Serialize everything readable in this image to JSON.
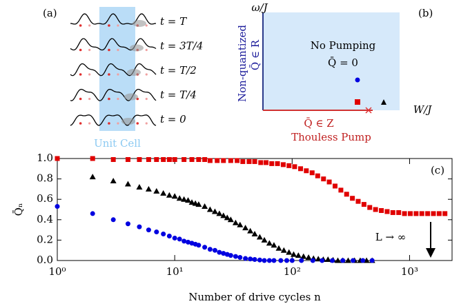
{
  "panel_a": {
    "label": "(a)",
    "rows": [
      "t = T",
      "t = 3T/4",
      "t = T/2",
      "t = T/4",
      "t = 0"
    ],
    "unit_cell": "Unit Cell"
  },
  "panel_b": {
    "label": "(b)",
    "y_axis": "ω/J",
    "x_axis": "W/J",
    "region": "No Pumping",
    "region_value": "Q̄ = 0",
    "left_title": "Non-quantized",
    "left_value": "Q̄ ∈ R",
    "bottom_value": "Q̄ ∈ Z",
    "bottom_title": "Thouless Pump"
  },
  "chart_data": {
    "type": "scatter",
    "label": "(c)",
    "annotation": "L → ∞",
    "x_label": "Number of drive cycles n",
    "y_label": "Q̄ₙ",
    "xscale": "log",
    "xlim": [
      1,
      2300
    ],
    "ylim": [
      0,
      1
    ],
    "xticks": [
      {
        "value": 1,
        "label": "10⁰"
      },
      {
        "value": 10,
        "label": "10¹"
      },
      {
        "value": 100,
        "label": "10²"
      },
      {
        "value": 1000,
        "label": "10³"
      }
    ],
    "yticks": [
      {
        "value": 0,
        "label": "0.0"
      },
      0.2,
      0.4,
      0.6,
      0.8,
      {
        "value": 1,
        "label": "1.0"
      }
    ],
    "series": [
      {
        "color": "#e00000",
        "marker": "square",
        "x": [
          1,
          2,
          3,
          4,
          5,
          6,
          7,
          8,
          9,
          10,
          12,
          14,
          16,
          18,
          20,
          23,
          26,
          30,
          34,
          38,
          43,
          48,
          54,
          60,
          67,
          75,
          84,
          94,
          105,
          118,
          132,
          148,
          165,
          185,
          207,
          232,
          260,
          291,
          326,
          365,
          409,
          458,
          513,
          575,
          644,
          721,
          808,
          905,
          1014,
          1136,
          1272,
          1425,
          1596,
          1787,
          2000
        ],
        "values": [
          1.0,
          1.0,
          0.99,
          0.99,
          0.99,
          0.99,
          0.99,
          0.99,
          0.99,
          0.99,
          0.99,
          0.99,
          0.99,
          0.99,
          0.98,
          0.98,
          0.98,
          0.98,
          0.98,
          0.97,
          0.97,
          0.97,
          0.96,
          0.96,
          0.95,
          0.95,
          0.94,
          0.93,
          0.92,
          0.9,
          0.88,
          0.86,
          0.83,
          0.8,
          0.77,
          0.73,
          0.69,
          0.65,
          0.61,
          0.58,
          0.55,
          0.52,
          0.5,
          0.49,
          0.48,
          0.47,
          0.47,
          0.46,
          0.46,
          0.46,
          0.46,
          0.46,
          0.46,
          0.46,
          0.46
        ]
      },
      {
        "color": "#000000",
        "marker": "triangle",
        "x": [
          2,
          3,
          4,
          5,
          6,
          7,
          8,
          9,
          10,
          11,
          12,
          13,
          14,
          15,
          16,
          18,
          20,
          22,
          24,
          26,
          28,
          30,
          33,
          36,
          40,
          44,
          48,
          53,
          58,
          64,
          70,
          77,
          85,
          94,
          103,
          113,
          125,
          138,
          152,
          167,
          184,
          202,
          223,
          245,
          270,
          300,
          340,
          380,
          430,
          480
        ],
        "values": [
          0.82,
          0.78,
          0.75,
          0.72,
          0.7,
          0.68,
          0.66,
          0.64,
          0.63,
          0.61,
          0.6,
          0.59,
          0.57,
          0.56,
          0.55,
          0.53,
          0.5,
          0.48,
          0.46,
          0.44,
          0.42,
          0.4,
          0.37,
          0.35,
          0.32,
          0.29,
          0.26,
          0.23,
          0.2,
          0.17,
          0.15,
          0.12,
          0.1,
          0.08,
          0.06,
          0.05,
          0.04,
          0.03,
          0.02,
          0.015,
          0.01,
          0.01,
          0.005,
          0,
          0,
          0,
          0,
          0,
          0,
          0
        ]
      },
      {
        "color": "#0000e0",
        "marker": "circle",
        "x": [
          1,
          2,
          3,
          4,
          5,
          6,
          7,
          8,
          9,
          10,
          11,
          12,
          13,
          14,
          15,
          16,
          18,
          20,
          22,
          24,
          26,
          28,
          30,
          33,
          36,
          40,
          44,
          48,
          53,
          58,
          64,
          70,
          80,
          90,
          100,
          120,
          150,
          180,
          220,
          270,
          330,
          400,
          480
        ],
        "values": [
          0.53,
          0.46,
          0.4,
          0.36,
          0.33,
          0.3,
          0.28,
          0.26,
          0.24,
          0.22,
          0.21,
          0.19,
          0.18,
          0.17,
          0.16,
          0.15,
          0.13,
          0.11,
          0.1,
          0.08,
          0.07,
          0.06,
          0.05,
          0.04,
          0.03,
          0.02,
          0.015,
          0.01,
          0.005,
          0,
          0,
          0,
          0,
          0,
          0,
          0,
          0,
          0,
          0,
          0,
          0,
          0,
          0
        ]
      }
    ]
  }
}
